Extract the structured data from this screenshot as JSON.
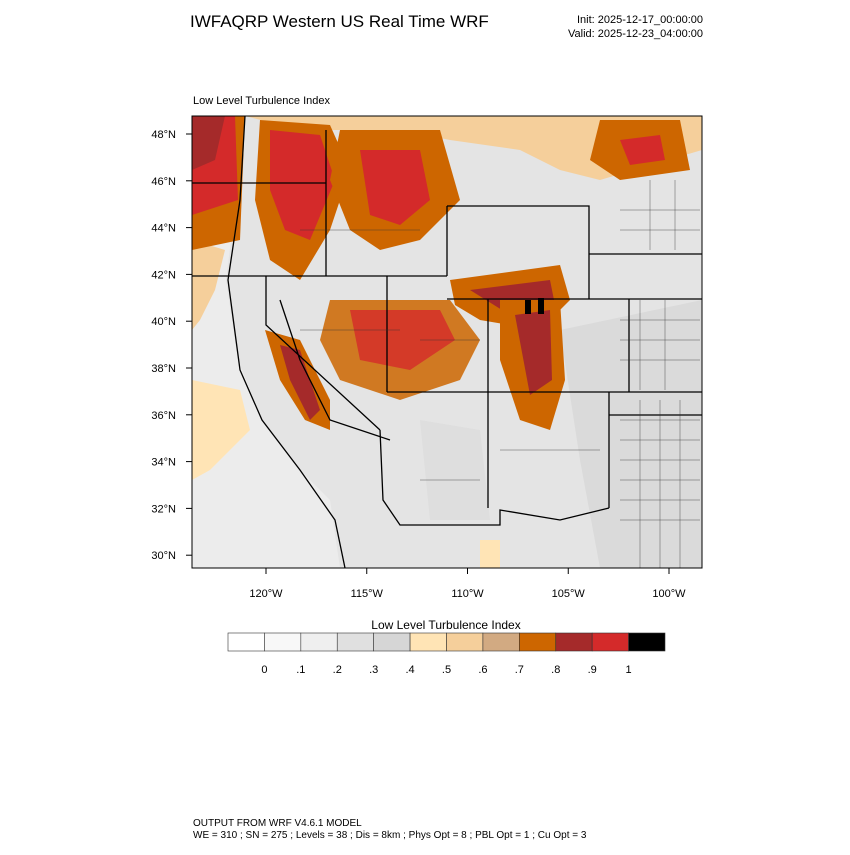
{
  "header": {
    "title": "IWFAQRP Western US Real Time WRF",
    "init": "Init: 2025-12-17_00:00:00",
    "valid": "Valid: 2025-12-23_04:00:00"
  },
  "map": {
    "field_label": "Low Level Turbulence Index",
    "lat_labels": [
      "48°N",
      "46°N",
      "44°N",
      "42°N",
      "40°N",
      "38°N",
      "36°N",
      "34°N",
      "32°N",
      "30°N"
    ],
    "lon_labels": [
      "120°W",
      "115°W",
      "110°W",
      "105°W",
      "100°W"
    ]
  },
  "colorbar": {
    "title": "Low Level Turbulence Index",
    "colors": [
      "#ffffff",
      "#f8f8f8",
      "#efefef",
      "#e0e0e0",
      "#d6d6d6",
      "#ffe4b5",
      "#f5cf9b",
      "#d2aa82",
      "#cd6600",
      "#a52a2a",
      "#d42a2a",
      "#000000"
    ],
    "labels": [
      "0",
      ".1",
      ".2",
      ".3",
      ".4",
      ".5",
      ".6",
      ".7",
      ".8",
      ".9",
      "1"
    ]
  },
  "footer": {
    "line1": "OUTPUT FROM WRF V4.6.1 MODEL",
    "line2": "WE = 310 ; SN = 275 ; Levels = 38 ; Dis = 8km ; Phys Opt = 8 ; PBL Opt = 1 ; Cu Opt = 3"
  }
}
